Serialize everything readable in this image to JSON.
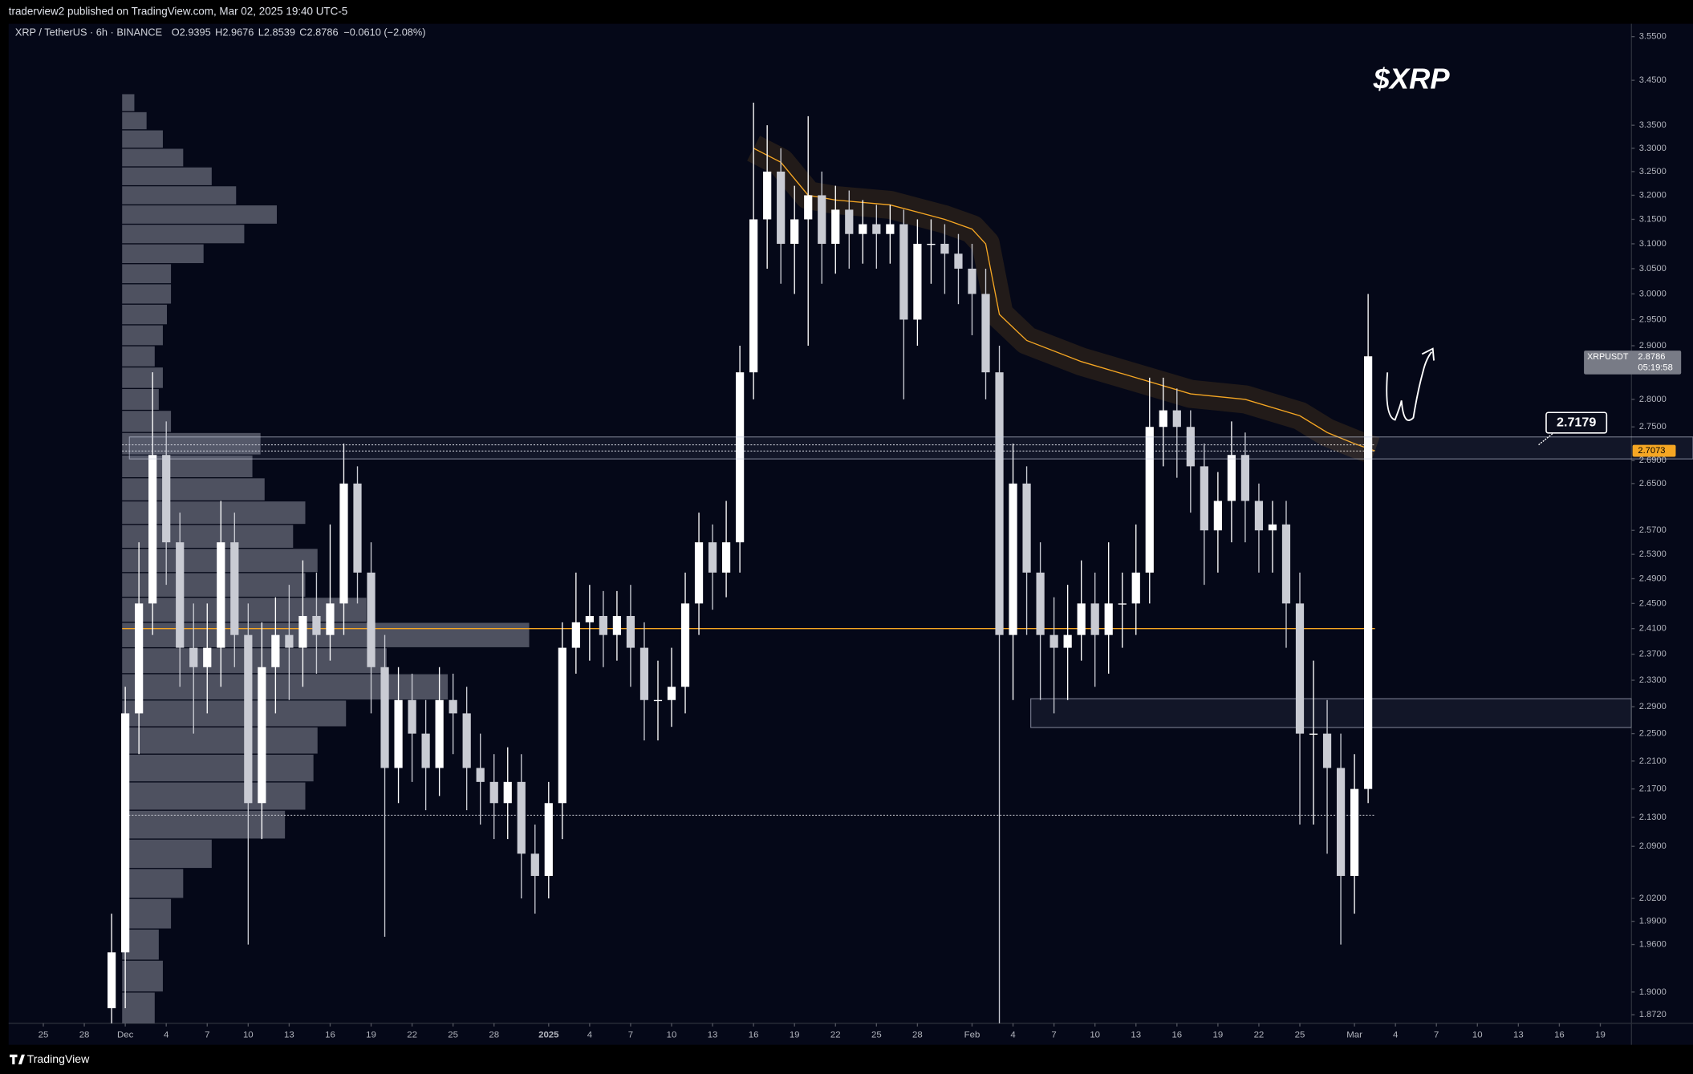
{
  "header": {
    "published": "traderview2 published on TradingView.com, Mar 02, 2025 19:40 UTC-5"
  },
  "footer": {
    "brand": "TradingView"
  },
  "chart_data": {
    "type": "candlestick",
    "title": "$XRP",
    "symbol": "XRP / TetherUS · 6h · BINANCE",
    "ohlc_legend": [
      {
        "label": "O",
        "value": 2.9395
      },
      {
        "label": "H",
        "value": 2.9676
      },
      {
        "label": "L",
        "value": 2.8539
      },
      {
        "label": "C",
        "value": 2.8786
      }
    ],
    "change": "−0.0610 (−2.08%)",
    "x": [
      -1,
      0,
      1,
      2,
      3,
      4,
      5,
      6,
      7,
      8,
      9,
      10,
      11,
      12,
      13,
      14,
      15,
      16,
      17,
      18,
      19,
      20,
      21,
      22,
      23,
      24,
      25,
      26,
      27,
      28,
      29,
      30,
      31,
      32,
      33,
      34,
      35,
      36,
      37,
      38,
      39,
      40,
      41,
      42,
      43,
      44,
      45,
      46,
      47,
      48,
      49,
      50,
      51,
      52,
      53,
      54,
      55,
      56,
      57,
      58,
      59,
      60,
      61,
      62,
      63,
      64,
      65,
      66,
      67,
      68,
      69,
      70,
      71,
      72,
      73,
      74,
      75,
      76,
      77,
      78,
      79,
      80,
      81,
      82,
      83,
      84,
      85,
      86,
      87,
      88,
      89,
      90,
      91
    ],
    "open": [
      1.88,
      1.95,
      2.28,
      2.45,
      2.7,
      2.55,
      2.38,
      2.35,
      2.38,
      2.55,
      2.4,
      2.15,
      2.35,
      2.4,
      2.38,
      2.43,
      2.4,
      2.45,
      2.65,
      2.5,
      2.35,
      2.2,
      2.3,
      2.25,
      2.2,
      2.3,
      2.28,
      2.2,
      2.18,
      2.15,
      2.18,
      2.08,
      2.05,
      2.15,
      2.38,
      2.42,
      2.43,
      2.4,
      2.43,
      2.38,
      2.3,
      2.3,
      2.32,
      2.45,
      2.55,
      2.5,
      2.55,
      2.85,
      3.15,
      3.25,
      3.1,
      3.15,
      3.2,
      3.1,
      3.17,
      3.12,
      3.14,
      3.12,
      3.14,
      2.95,
      3.1,
      3.1,
      3.08,
      3.05,
      3.0,
      2.85,
      2.4,
      2.65,
      2.5,
      2.4,
      2.38,
      2.4,
      2.45,
      2.4,
      2.45,
      2.45,
      2.5,
      2.75,
      2.78,
      2.75,
      2.68,
      2.57,
      2.62,
      2.7,
      2.62,
      2.57,
      2.58,
      2.45,
      2.25,
      2.25,
      2.2,
      2.05,
      2.17
    ],
    "high": [
      2.0,
      2.32,
      2.55,
      2.85,
      2.76,
      2.6,
      2.45,
      2.45,
      2.62,
      2.6,
      2.45,
      2.42,
      2.46,
      2.48,
      2.52,
      2.5,
      2.58,
      2.72,
      2.68,
      2.55,
      2.4,
      2.35,
      2.34,
      2.3,
      2.35,
      2.34,
      2.32,
      2.25,
      2.22,
      2.23,
      2.22,
      2.12,
      2.18,
      2.42,
      2.5,
      2.48,
      2.47,
      2.47,
      2.48,
      2.42,
      2.36,
      2.38,
      2.5,
      2.6,
      2.58,
      2.62,
      2.9,
      3.4,
      3.35,
      3.3,
      3.22,
      3.37,
      3.25,
      3.22,
      3.21,
      3.19,
      3.18,
      3.18,
      3.17,
      3.15,
      3.15,
      3.14,
      3.12,
      3.1,
      3.05,
      2.9,
      2.72,
      2.68,
      2.55,
      2.46,
      2.48,
      2.52,
      2.5,
      2.55,
      2.5,
      2.58,
      2.84,
      2.84,
      2.82,
      2.78,
      2.72,
      2.67,
      2.76,
      2.74,
      2.65,
      2.62,
      2.62,
      2.5,
      2.36,
      2.3,
      2.25,
      2.22,
      3.0
    ],
    "low": [
      1.8,
      1.88,
      2.22,
      2.4,
      2.48,
      2.32,
      2.25,
      2.28,
      2.32,
      2.35,
      1.96,
      2.1,
      2.28,
      2.3,
      2.32,
      2.34,
      2.36,
      2.4,
      2.45,
      2.28,
      1.97,
      2.15,
      2.18,
      2.14,
      2.16,
      2.22,
      2.14,
      2.12,
      2.1,
      2.1,
      2.02,
      2.0,
      2.02,
      2.1,
      2.34,
      2.36,
      2.35,
      2.36,
      2.32,
      2.24,
      2.24,
      2.26,
      2.28,
      2.4,
      2.44,
      2.46,
      2.5,
      2.8,
      3.05,
      3.02,
      3.0,
      2.9,
      3.02,
      3.04,
      3.05,
      3.06,
      3.05,
      3.06,
      2.8,
      2.9,
      3.02,
      3.0,
      2.98,
      2.92,
      2.8,
      1.77,
      2.3,
      2.4,
      2.3,
      2.28,
      2.3,
      2.36,
      2.32,
      2.34,
      2.38,
      2.4,
      2.45,
      2.68,
      2.66,
      2.6,
      2.48,
      2.5,
      2.55,
      2.55,
      2.5,
      2.5,
      2.38,
      2.12,
      2.12,
      2.08,
      1.96,
      2.0,
      2.15
    ],
    "close": [
      1.95,
      2.28,
      2.45,
      2.7,
      2.55,
      2.38,
      2.35,
      2.38,
      2.55,
      2.4,
      2.15,
      2.35,
      2.4,
      2.38,
      2.43,
      2.4,
      2.45,
      2.65,
      2.5,
      2.35,
      2.2,
      2.3,
      2.25,
      2.2,
      2.3,
      2.28,
      2.2,
      2.18,
      2.15,
      2.18,
      2.08,
      2.05,
      2.15,
      2.38,
      2.42,
      2.43,
      2.4,
      2.43,
      2.38,
      2.3,
      2.3,
      2.32,
      2.45,
      2.55,
      2.5,
      2.55,
      2.85,
      3.15,
      3.25,
      3.1,
      3.15,
      3.2,
      3.1,
      3.17,
      3.12,
      3.14,
      3.12,
      3.14,
      2.95,
      3.1,
      3.1,
      3.08,
      3.05,
      3.0,
      2.85,
      2.4,
      2.65,
      2.5,
      2.4,
      2.38,
      2.4,
      2.45,
      2.4,
      2.45,
      2.45,
      2.5,
      2.75,
      2.78,
      2.75,
      2.68,
      2.57,
      2.62,
      2.7,
      2.62,
      2.57,
      2.58,
      2.45,
      2.25,
      2.25,
      2.2,
      2.05,
      2.17,
      2.88
    ],
    "up_color": "#ffffff",
    "down_color": "#c9cbd3",
    "xlim": [
      -8.54,
      110.28
    ],
    "xticks": [
      {
        "value": -6,
        "label": "25"
      },
      {
        "value": -3,
        "label": "28"
      },
      {
        "value": 0,
        "label": "Dec"
      },
      {
        "value": 3,
        "label": "4"
      },
      {
        "value": 6,
        "label": "7"
      },
      {
        "value": 9,
        "label": "10"
      },
      {
        "value": 12,
        "label": "13"
      },
      {
        "value": 15,
        "label": "16"
      },
      {
        "value": 18,
        "label": "19"
      },
      {
        "value": 21,
        "label": "22"
      },
      {
        "value": 24,
        "label": "25"
      },
      {
        "value": 27,
        "label": "28"
      },
      {
        "value": 31,
        "label": "2025",
        "bold": true
      },
      {
        "value": 34,
        "label": "4"
      },
      {
        "value": 37,
        "label": "7"
      },
      {
        "value": 40,
        "label": "10"
      },
      {
        "value": 43,
        "label": "13"
      },
      {
        "value": 46,
        "label": "16"
      },
      {
        "value": 49,
        "label": "19"
      },
      {
        "value": 52,
        "label": "22"
      },
      {
        "value": 55,
        "label": "25"
      },
      {
        "value": 58,
        "label": "28"
      },
      {
        "value": 62,
        "label": "Feb"
      },
      {
        "value": 65,
        "label": "4"
      },
      {
        "value": 68,
        "label": "7"
      },
      {
        "value": 71,
        "label": "10"
      },
      {
        "value": 74,
        "label": "13"
      },
      {
        "value": 77,
        "label": "16"
      },
      {
        "value": 80,
        "label": "19"
      },
      {
        "value": 83,
        "label": "22"
      },
      {
        "value": 86,
        "label": "25"
      },
      {
        "value": 90,
        "label": "Mar"
      },
      {
        "value": 93,
        "label": "4"
      },
      {
        "value": 96,
        "label": "7"
      },
      {
        "value": 99,
        "label": "10"
      },
      {
        "value": 102,
        "label": "13"
      },
      {
        "value": 105,
        "label": "16"
      },
      {
        "value": 108,
        "label": "19"
      }
    ],
    "ylim": [
      1.8616,
      3.58
    ],
    "yscale": "log",
    "grid": false,
    "yticks": [
      {
        "value": 3.55,
        "label": "3.5500"
      },
      {
        "value": 3.45,
        "label": "3.4500"
      },
      {
        "value": 3.35,
        "label": "3.3500"
      },
      {
        "value": 3.3,
        "label": "3.3000"
      },
      {
        "value": 3.25,
        "label": "3.2500"
      },
      {
        "value": 3.2,
        "label": "3.2000"
      },
      {
        "value": 3.15,
        "label": "3.1500"
      },
      {
        "value": 3.1,
        "label": "3.1000"
      },
      {
        "value": 3.05,
        "label": "3.0500"
      },
      {
        "value": 3,
        "label": "3.0000"
      },
      {
        "value": 2.95,
        "label": "2.9500"
      },
      {
        "value": 2.9,
        "label": "2.9000"
      },
      {
        "value": 2.8,
        "label": "2.8000"
      },
      {
        "value": 2.75,
        "label": "2.7500"
      },
      {
        "value": 2.69,
        "label": "2.6900"
      },
      {
        "value": 2.65,
        "label": "2.6500"
      },
      {
        "value": 2.57,
        "label": "2.5700"
      },
      {
        "value": 2.53,
        "label": "2.5300"
      },
      {
        "value": 2.49,
        "label": "2.4900"
      },
      {
        "value": 2.45,
        "label": "2.4500"
      },
      {
        "value": 2.41,
        "label": "2.4100"
      },
      {
        "value": 2.37,
        "label": "2.3700"
      },
      {
        "value": 2.33,
        "label": "2.3300"
      },
      {
        "value": 2.29,
        "label": "2.2900"
      },
      {
        "value": 2.25,
        "label": "2.2500"
      },
      {
        "value": 2.21,
        "label": "2.2100"
      },
      {
        "value": 2.17,
        "label": "2.1700"
      },
      {
        "value": 2.13,
        "label": "2.1300"
      },
      {
        "value": 2.09,
        "label": "2.0900"
      },
      {
        "value": 2.02,
        "label": "2.0200"
      },
      {
        "value": 1.99,
        "label": "1.9900"
      },
      {
        "value": 1.96,
        "label": "1.9600"
      },
      {
        "value": 1.9,
        "label": "1.9000"
      },
      {
        "value": 1.872,
        "label": "1.8720"
      }
    ],
    "volume_profile": {
      "color": "#8a8e9c",
      "levels": [
        1.88,
        1.92,
        1.96,
        2.0,
        2.04,
        2.08,
        2.12,
        2.16,
        2.2,
        2.24,
        2.28,
        2.32,
        2.36,
        2.4,
        2.44,
        2.48,
        2.52,
        2.56,
        2.6,
        2.64,
        2.68,
        2.72,
        2.76,
        2.8,
        2.84,
        2.88,
        2.92,
        2.96,
        3.0,
        3.04,
        3.08,
        3.12,
        3.16,
        3.2,
        3.24,
        3.28,
        3.32,
        3.36,
        3.4
      ],
      "volumes": [
        8,
        10,
        9,
        12,
        15,
        22,
        40,
        45,
        47,
        48,
        55,
        80,
        65,
        100,
        60,
        45,
        48,
        42,
        45,
        35,
        32,
        34,
        12,
        9,
        10,
        8,
        10,
        11,
        12,
        12,
        20,
        30,
        38,
        28,
        22,
        15,
        10,
        6,
        3
      ]
    },
    "anchored_vwap": {
      "color": "#f5a623",
      "x": [
        46,
        48,
        50,
        52,
        56,
        60,
        62,
        63,
        64,
        66,
        70,
        74,
        78,
        82,
        86,
        88,
        90,
        91.5
      ],
      "values": [
        3.3,
        3.27,
        3.2,
        3.19,
        3.18,
        3.15,
        3.13,
        3.1,
        2.96,
        2.91,
        2.87,
        2.84,
        2.81,
        2.8,
        2.77,
        2.74,
        2.72,
        2.7073
      ]
    },
    "levels": [
      {
        "value": 2.41,
        "style": "solid",
        "color": "#f5a623"
      },
      {
        "value": 2.133,
        "style": "dotted",
        "color": "#c9cbd3"
      },
      {
        "value": 2.718,
        "style": "dotted",
        "color": "#c9cbd3"
      },
      {
        "value": 2.707,
        "style": "dotted",
        "color": "#c9cbd3"
      }
    ],
    "zones": [
      {
        "from": 2.693,
        "to": 2.732,
        "x_start": 0.3
      },
      {
        "from": 2.259,
        "to": 2.302,
        "x_start": 66.3
      }
    ],
    "last_price": {
      "symbol": "XRPUSDT",
      "value": 2.8786,
      "countdown": "05:19:58"
    },
    "vwap_price": {
      "value": 2.7073
    },
    "callout": {
      "value": 2.7179
    }
  }
}
